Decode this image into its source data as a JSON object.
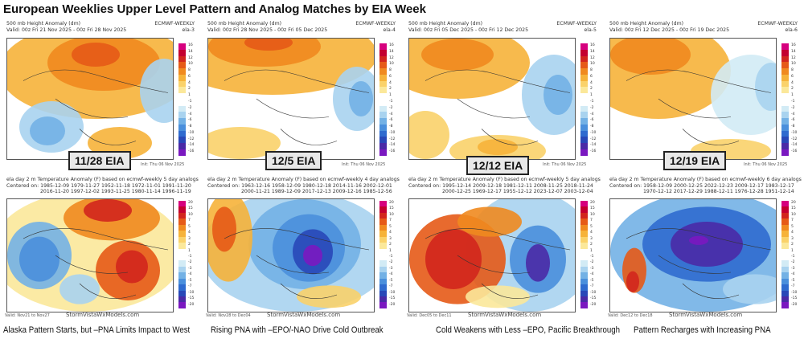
{
  "title": "European Weeklies Upper Level Pattern and Analog Matches by EIA Week",
  "site": "StormVistaWxModels.com",
  "colors": {
    "top_scale": [
      "#d6007e",
      "#c4002f",
      "#d2261d",
      "#e65a17",
      "#f08a1f",
      "#f6b33a",
      "#fad26a",
      "#fbe89a",
      "#ffffff",
      "#ffffff",
      "#d2ebf5",
      "#a9d3ef",
      "#73b1e5",
      "#4a8fdc",
      "#2f6bcf",
      "#2848b8",
      "#4a2aa6",
      "#7a18c0"
    ],
    "bottom_scale": [
      "#d6007e",
      "#c4002f",
      "#d2261d",
      "#e65a17",
      "#f08a1f",
      "#f6b33a",
      "#fad26a",
      "#fbe89a",
      "#ffffff",
      "#ffffff",
      "#d2ebf5",
      "#a9d3ef",
      "#73b1e5",
      "#4a8fdc",
      "#2f6bcf",
      "#2848b8",
      "#4a2aa6",
      "#7a18c0"
    ]
  },
  "top_scale_labels": [
    "16",
    "14",
    "12",
    "10",
    "8",
    "6",
    "4",
    "2",
    "1",
    "-1",
    "-2",
    "-4",
    "-6",
    "-8",
    "-10",
    "-12",
    "-14",
    "-16"
  ],
  "bottom_scale_labels": [
    "20",
    "15",
    "10",
    "7",
    "5",
    "4",
    "3",
    "2",
    "1",
    "-1",
    "-2",
    "-3",
    "-4",
    "-5",
    "-7",
    "-10",
    "-15",
    "-20"
  ],
  "panels": [
    {
      "top_title": "500 mb Height Anomaly (dm)",
      "top_valid": "Valid: 00z Fri 21 Nov 2025 - 00z Fri 28 Nov 2025",
      "model": "ECMWF-WEEKLY",
      "member": "ela-3",
      "init": "Init: Thu 06 Nov 2025",
      "eia": "11/28 EIA",
      "bottom_title": "ela day 2 m Temperature Anomaly (F) based on ecmwf-weekly 5 day analogs",
      "centered_label": "Centered on:",
      "analogs1": "1985-12-09 1979-11-27 1952-11-18 1972-11-01 1991-11-20",
      "analogs2": "2016-11-20 1997-12-02 1993-11-25 1980-11-14 1996-11-19",
      "valid_range": "Valid: Nov21 to Nov27",
      "caption": "Alaska Pattern Starts, but –PNA Limits Impact to West"
    },
    {
      "top_title": "500 mb Height Anomaly (dm)",
      "top_valid": "Valid: 00z Fri 28 Nov 2025 - 00z Fri 05 Dec 2025",
      "model": "ECMWF-WEEKLY",
      "member": "ela-4",
      "init": "Init: Thu 06 Nov 2025",
      "eia": "12/5 EIA",
      "bottom_title": "ela day 2 m Temperature Anomaly (F) based on ecmwf-weekly 4 day analogs",
      "centered_label": "Centered on:",
      "analogs1": "1963-12-16 1958-12-09 1980-12-18 2014-11-16 2002-12-01",
      "analogs2": "2000-11-21 1989-12-09 2017-12-13 2009-12-16 1985-12-56",
      "valid_range": "Valid: Nov28 to Dec04",
      "caption": "Rising PNA with –EPO/-NAO Drive Cold Outbreak"
    },
    {
      "top_title": "500 mb Height Anomaly (dm)",
      "top_valid": "Valid: 00z Fri 05 Dec 2025 - 00z Fri 12 Dec 2025",
      "model": "ECMWF-WEEKLY",
      "member": "ela-5",
      "init": "Init: Thu 06 Nov 2025",
      "eia": "12/12 EIA",
      "bottom_title": "ela day 2 m Temperature Anomaly (F) based on ecmwf-weekly 5 day analogs",
      "centered_label": "Centered on:",
      "analogs1": "1995-12-14 2009-12-18 1981-12-11 2008-11-25 2018-11-24",
      "analogs2": "2000-12-25 1969-12-17 1955-12-12 2023-12-07 2003-12-04",
      "valid_range": "Valid: Dec05 to Dec11",
      "caption": "Cold Weakens with Less –EPO, Pacific Breakthrough"
    },
    {
      "top_title": "500 mb Height Anomaly (dm)",
      "top_valid": "Valid: 00z Fri 12 Dec 2025 - 00z Fri 19 Dec 2025",
      "model": "ECMWF-WEEKLY",
      "member": "ela-6",
      "init": "Init: Thu 06 Nov 2025",
      "eia": "12/19 EIA",
      "bottom_title": "ela day 2 m Temperature Anomaly (F) based on ecmwf-weekly 6 day analogs",
      "centered_label": "Centered on:",
      "analogs1": "1958-12-09 2000-12-25 2022-12-23 2009-12-17 1983-12-17",
      "analogs2": "1970-12-12 2017-12-29 1988-12-11 1976-12-28 1951-12-14",
      "valid_range": "Valid: Dec12 to Dec18",
      "caption": "Pattern Recharges with Increasing PNA"
    }
  ]
}
